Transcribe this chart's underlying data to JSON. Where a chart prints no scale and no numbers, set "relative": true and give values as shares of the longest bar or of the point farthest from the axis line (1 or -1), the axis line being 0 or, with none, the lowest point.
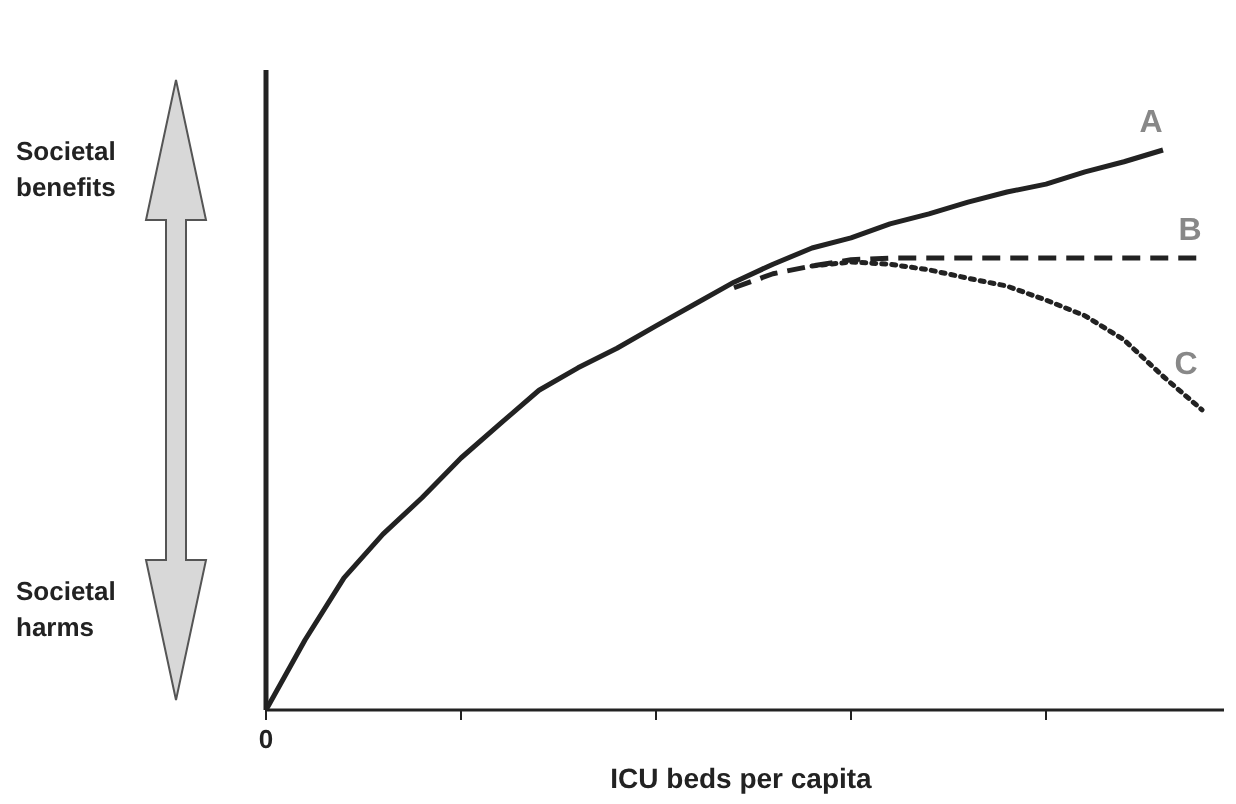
{
  "chart_data": {
    "type": "line",
    "relative": true,
    "xlabel": "ICU beds per capita",
    "categories": [
      null,
      null,
      null,
      null,
      null,
      null,
      null,
      null,
      null,
      null,
      null,
      null,
      null,
      null,
      null,
      null,
      null,
      null,
      null,
      null,
      null,
      null,
      null,
      null,
      null
    ],
    "annotations": [
      "Societal benefits",
      "Societal harms",
      "0"
    ],
    "legend": false,
    "marker": "none",
    "series": [
      {
        "name": "A",
        "color": "#222222",
        "line_style": "solid",
        "values": [
          0,
          0.125,
          0.236,
          0.314,
          0.379,
          0.45,
          0.511,
          0.571,
          0.611,
          0.646,
          0.686,
          0.725,
          0.764,
          0.796,
          0.825,
          0.843,
          0.868,
          0.886,
          0.907,
          0.925,
          0.939,
          0.961,
          0.979,
          1,
          null
        ]
      },
      {
        "name": "B",
        "color": "#222222",
        "line_style": "dashed",
        "values": [
          null,
          null,
          null,
          null,
          null,
          null,
          null,
          null,
          null,
          null,
          null,
          null,
          0.754,
          0.779,
          0.793,
          0.804,
          0.807,
          0.807,
          0.807,
          0.807,
          0.807,
          0.807,
          0.807,
          0.807,
          0.807
        ]
      },
      {
        "name": "C",
        "color": "#222222",
        "line_style": "dotted",
        "values": [
          null,
          null,
          null,
          null,
          null,
          null,
          null,
          null,
          null,
          null,
          null,
          null,
          null,
          null,
          0.793,
          0.8,
          0.796,
          0.786,
          0.771,
          0.757,
          0.732,
          0.704,
          0.661,
          0.596,
          0.536
        ]
      }
    ]
  }
}
